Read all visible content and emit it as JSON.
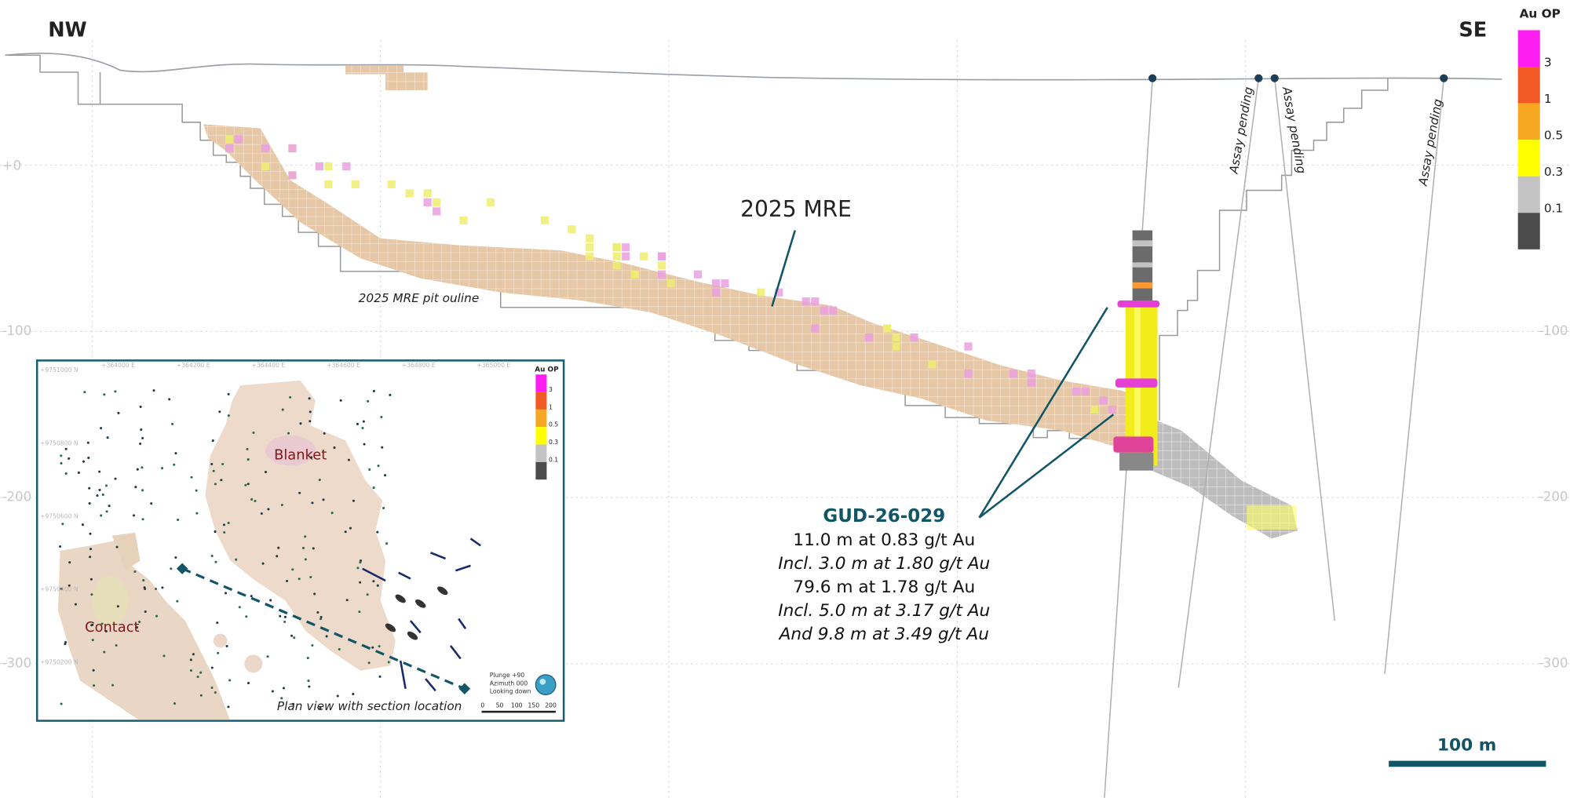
{
  "header": {
    "left": "NW",
    "right": "SE"
  },
  "elevation_labels": {
    "left": [
      "+0",
      "-100",
      "-200",
      "-300"
    ],
    "right": [
      "-100",
      "-200",
      "-300"
    ]
  },
  "legend": {
    "title": "Au OP",
    "colors": [
      "#ff1ef2",
      "#f15a24",
      "#f7a823",
      "#ffff00",
      "#c3c3c3",
      "#4b4b4b"
    ],
    "labels": [
      "3",
      "1",
      "0.5",
      "0.3",
      "0.1"
    ]
  },
  "annotations": {
    "mre": "2025 MRE",
    "pit": "2025 MRE pit ouline",
    "assay_pending": [
      "Assay pending",
      "Assay pending",
      "Assay pending"
    ]
  },
  "drillhole": {
    "name": "GUD-26-029",
    "intercepts": [
      {
        "text": "11.0 m at 0.83 g/t Au",
        "italic": false
      },
      {
        "text": "Incl. 3.0 m at 1.80 g/t Au",
        "italic": true
      },
      {
        "text": "79.6 m at 1.78 g/t Au",
        "italic": false
      },
      {
        "text": "Incl. 5.0 m at 3.17 g/t Au",
        "italic": true
      },
      {
        "text": "And 9.8 m at 3.49 g/t Au",
        "italic": true
      }
    ]
  },
  "scale_bar": "100 m",
  "inset": {
    "caption": "Plan view with section location",
    "blanket": "Blanket",
    "contact": "Contact",
    "legend_title": "Au OP",
    "legend_labels": [
      "3",
      "1",
      "0.5",
      "0.3",
      "0.1"
    ],
    "view": [
      "Plunge +90",
      "Azimuth 000",
      "Looking down"
    ],
    "scale_ticks": [
      "0",
      "50",
      "100",
      "150",
      "200"
    ],
    "easting_labels": [
      "+364000 E",
      "+364200 E",
      "+364400 E",
      "+364600 E",
      "+364800 E",
      "+365000 E"
    ],
    "northing_labels": [
      "+9751000 N",
      "+9750800 N",
      "+9750600 N",
      "+9750400 N",
      "+9750200 N"
    ]
  }
}
